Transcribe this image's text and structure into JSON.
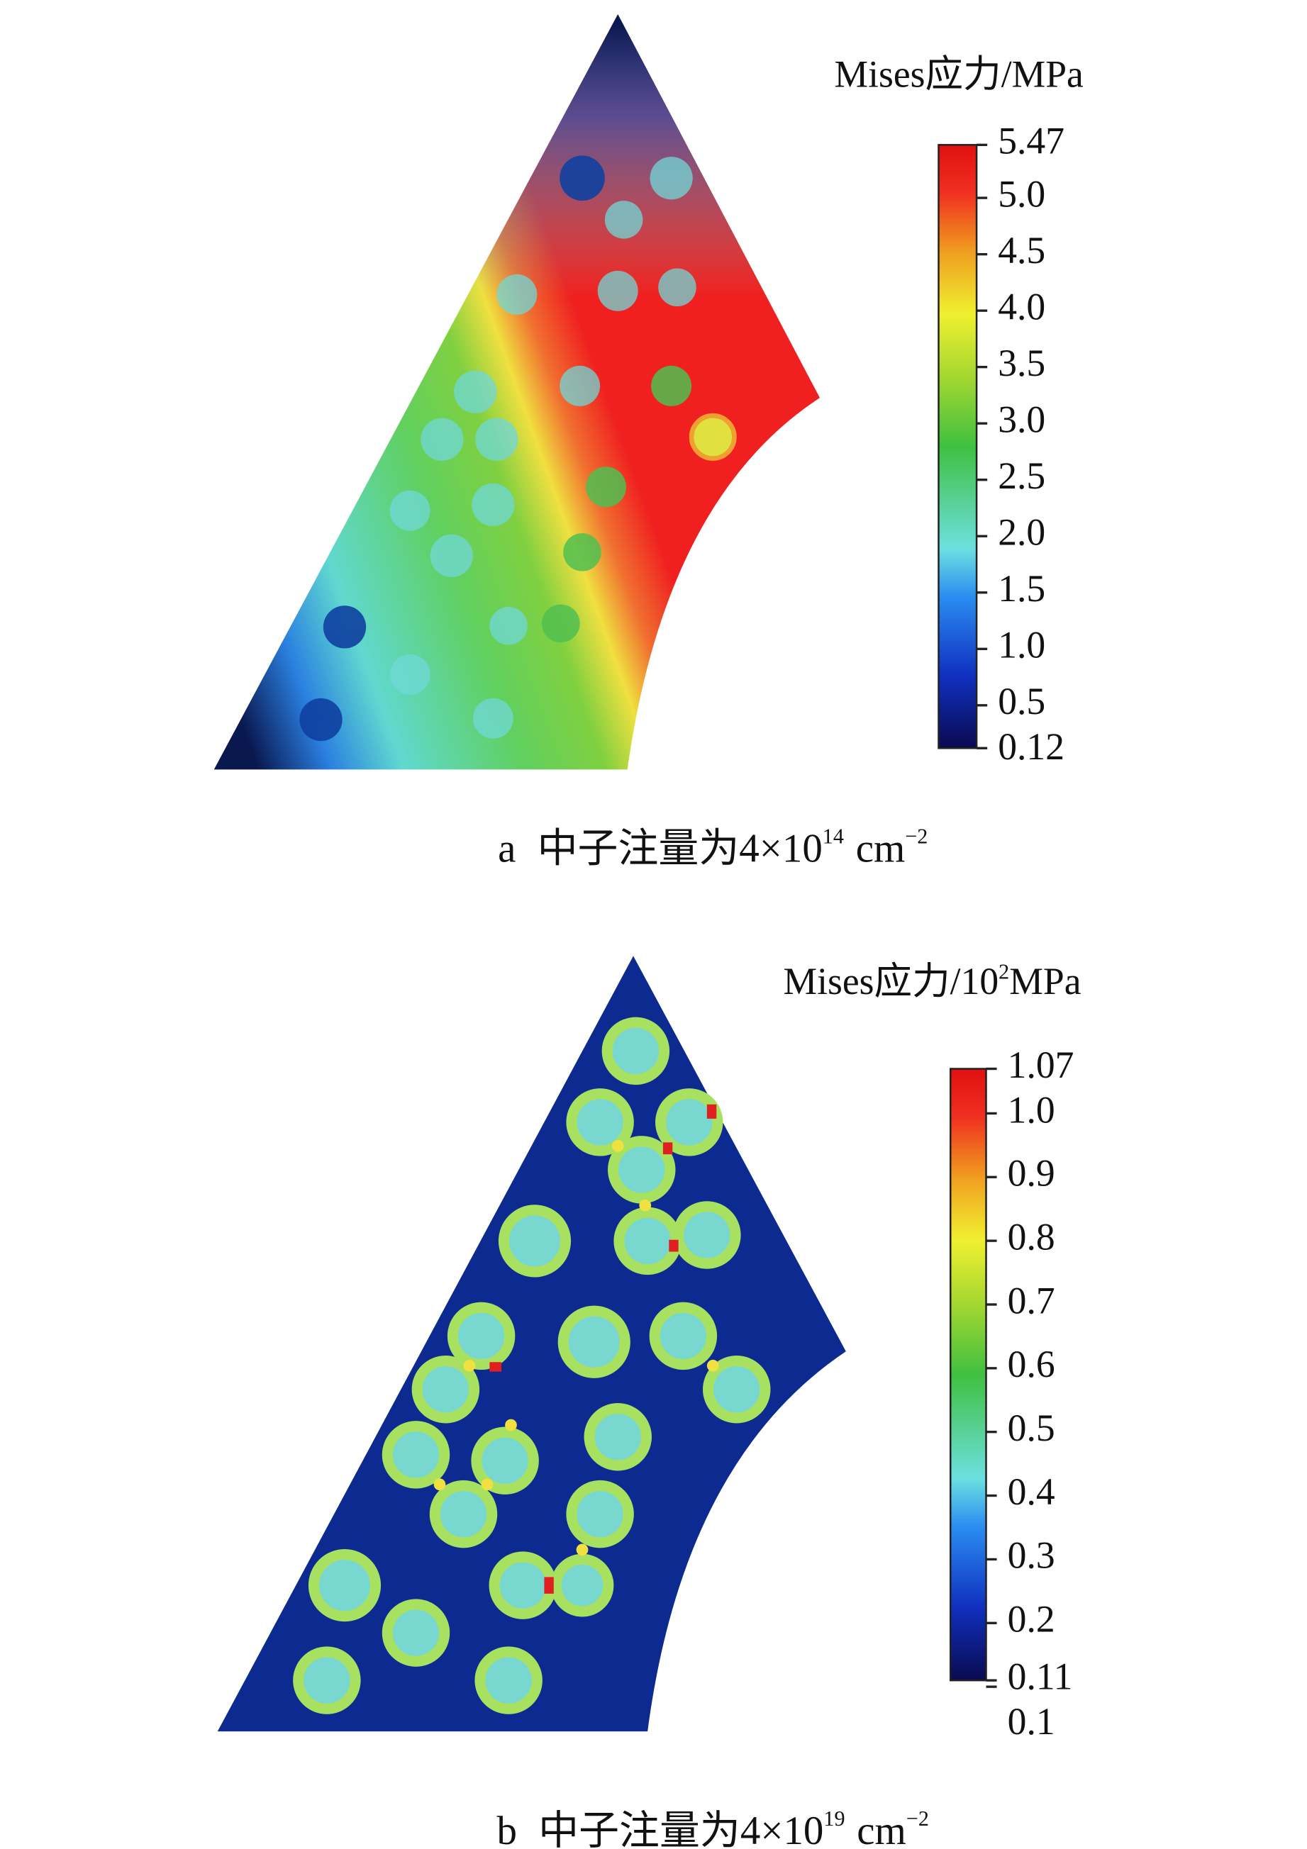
{
  "chart_data": [
    {
      "type": "contour",
      "colorbar_title": "Mises应力/MPa",
      "clim": [
        0.12,
        5.47
      ],
      "cticks": [
        0.12,
        0.5,
        {
          "value": 1.0,
          "label": "1.0"
        },
        1.5,
        {
          "value": 2.0,
          "label": "2.0"
        },
        2.5,
        {
          "value": 3.0,
          "label": "3.0"
        },
        3.5,
        {
          "value": 4.0,
          "label": "4.0"
        },
        4.5,
        {
          "value": 5.0,
          "label": "5.0"
        },
        5.47
      ],
      "caption_label": "a",
      "caption": "中子注量为4×10",
      "caption_sup": "14",
      "caption_unit": "cm",
      "caption_unit_sup": "−2"
    },
    {
      "type": "contour",
      "colorbar_title": "Mises应力/10",
      "colorbar_title_sup": "2",
      "colorbar_title_end": "MPa",
      "clim": [
        0.11,
        1.07
      ],
      "cticks": [
        0.11,
        0.1,
        0.2,
        0.3,
        0.4,
        0.5,
        0.6,
        0.7,
        0.8,
        0.9,
        {
          "value": 1.0,
          "label": "1.0"
        },
        1.07
      ],
      "caption_label": "b",
      "caption": "中子注量为4×10",
      "caption_sup": "19",
      "caption_unit": "cm",
      "caption_unit_sup": "−2"
    }
  ]
}
